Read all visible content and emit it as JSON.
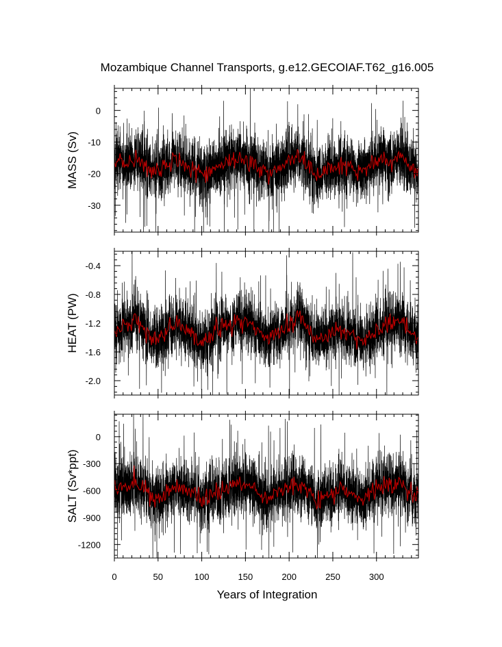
{
  "chart_data": {
    "title": "Mozambique Channel Transports, g.e12.GECOIAF.T62_g16.005",
    "xlabel": "Years of Integration",
    "xlim": [
      0,
      348
    ],
    "xticks": [
      0,
      50,
      100,
      150,
      200,
      250,
      300
    ],
    "xtick_labels": [
      "0",
      "50",
      "100",
      "150",
      "200",
      "250",
      "300"
    ],
    "grid": false,
    "panels": [
      {
        "type": "line",
        "ylabel": "MASS (Sv)",
        "ylim": [
          -38.5,
          7
        ],
        "yticks": [
          0,
          -10,
          -20,
          -30
        ],
        "ytick_labels": [
          "0",
          "-10",
          "-20",
          "-30"
        ],
        "series": [
          {
            "color": "#000000",
            "role": "monthly",
            "mean": -17.5,
            "spread": 7.5,
            "smooth_amp": 2.2,
            "min": -38.5,
            "max": 7,
            "smooth_anchor": [
              [
                0,
                -17
              ],
              [
                25,
                -15
              ],
              [
                45,
                -20
              ],
              [
                70,
                -16
              ],
              [
                90,
                -18
              ],
              [
                100,
                -20
              ],
              [
                125,
                -17
              ],
              [
                150,
                -15
              ],
              [
                175,
                -20
              ],
              [
                200,
                -16
              ],
              [
                215,
                -15
              ],
              [
                230,
                -21
              ],
              [
                260,
                -17
              ],
              [
                285,
                -19
              ],
              [
                310,
                -16
              ],
              [
                330,
                -15
              ],
              [
                348,
                -20
              ]
            ]
          },
          {
            "color": "#c00000",
            "role": "annual-mean"
          }
        ]
      },
      {
        "type": "line",
        "ylabel": "HEAT (PW)",
        "ylim": [
          -2.2,
          -0.2
        ],
        "yticks": [
          -0.4,
          -0.8,
          -1.2,
          -1.6,
          -2.0
        ],
        "ytick_labels": [
          "-0.4",
          "-0.8",
          "-1.2",
          "-1.6",
          "-2.0"
        ],
        "series": [
          {
            "color": "#000000",
            "role": "monthly",
            "mean": -1.33,
            "spread": 0.32,
            "smooth_amp": 0.1,
            "min": -2.2,
            "max": -0.2,
            "smooth_anchor": [
              [
                0,
                -1.3
              ],
              [
                25,
                -1.15
              ],
              [
                45,
                -1.45
              ],
              [
                70,
                -1.2
              ],
              [
                90,
                -1.35
              ],
              [
                100,
                -1.45
              ],
              [
                125,
                -1.25
              ],
              [
                150,
                -1.15
              ],
              [
                175,
                -1.45
              ],
              [
                200,
                -1.2
              ],
              [
                215,
                -1.1
              ],
              [
                230,
                -1.45
              ],
              [
                260,
                -1.3
              ],
              [
                285,
                -1.45
              ],
              [
                310,
                -1.25
              ],
              [
                330,
                -1.2
              ],
              [
                348,
                -1.45
              ]
            ]
          },
          {
            "color": "#c00000",
            "role": "annual-mean"
          }
        ]
      },
      {
        "type": "line",
        "ylabel": "SALT (Sv*ppt)",
        "ylim": [
          -1350,
          250
        ],
        "yticks": [
          0,
          -300,
          -600,
          -900,
          -1200
        ],
        "ytick_labels": [
          "0",
          "-300",
          "-600",
          "-900",
          "-1200"
        ],
        "series": [
          {
            "color": "#000000",
            "role": "monthly",
            "mean": -620,
            "spread": 260,
            "smooth_amp": 80,
            "min": -1350,
            "max": 250,
            "smooth_anchor": [
              [
                0,
                -600
              ],
              [
                25,
                -520
              ],
              [
                45,
                -700
              ],
              [
                70,
                -560
              ],
              [
                90,
                -630
              ],
              [
                100,
                -700
              ],
              [
                125,
                -600
              ],
              [
                150,
                -520
              ],
              [
                175,
                -700
              ],
              [
                200,
                -560
              ],
              [
                215,
                -520
              ],
              [
                230,
                -720
              ],
              [
                260,
                -600
              ],
              [
                285,
                -680
              ],
              [
                310,
                -560
              ],
              [
                330,
                -530
              ],
              [
                348,
                -700
              ]
            ]
          },
          {
            "color": "#c00000",
            "role": "annual-mean"
          }
        ]
      }
    ]
  }
}
